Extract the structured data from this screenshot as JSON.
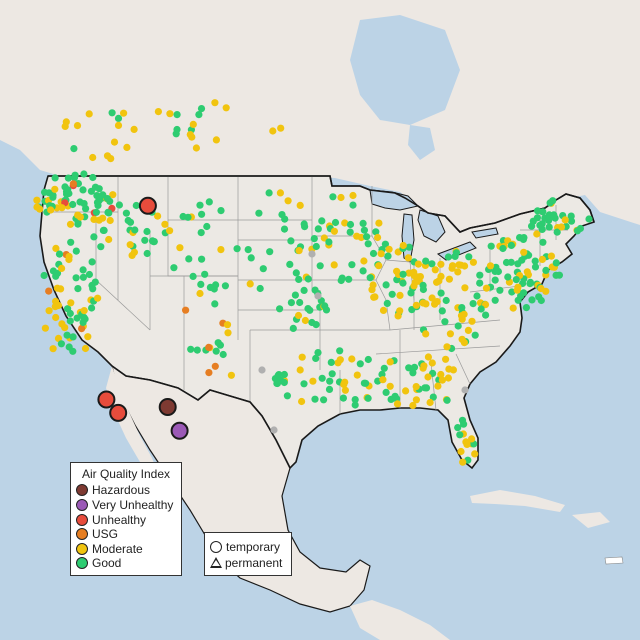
{
  "colors": {
    "water": "#bcd3e6",
    "land": "#ece9e4",
    "land_other": "#ede8e3",
    "boundary": "#1a1a1a",
    "state_line": "#9a9a9a",
    "Hazardous": "#7e3a32",
    "Very Unhealthy": "#9b59b6",
    "Unhealthy": "#e74c3c",
    "USG": "#e67e22",
    "Moderate": "#f1c40f",
    "Good": "#2ecc71",
    "missing": "#b0b0b0"
  },
  "legend": {
    "title": "Air Quality Index",
    "items": [
      {
        "label": "Hazardous",
        "color": "#7e3a32"
      },
      {
        "label": "Very Unhealthy",
        "color": "#9b59b6"
      },
      {
        "label": "Unhealthy",
        "color": "#e74c3c"
      },
      {
        "label": "USG",
        "color": "#e67e22"
      },
      {
        "label": "Moderate",
        "color": "#f1c40f"
      },
      {
        "label": "Good",
        "color": "#2ecc71"
      }
    ]
  },
  "shape_legend": {
    "temporary": "temporary",
    "permanent": "permanent"
  },
  "large_monitors": [
    {
      "category": "Unhealthy",
      "lat": 47.0,
      "lon": -114.1
    },
    {
      "category": "Unhealthy",
      "lat": 34.0,
      "lon": -118.3
    },
    {
      "category": "Unhealthy",
      "lat": 33.1,
      "lon": -117.1
    },
    {
      "category": "Hazardous",
      "lat": 33.5,
      "lon": -112.1
    },
    {
      "category": "Very Unhealthy",
      "lat": 31.9,
      "lon": -110.9
    }
  ]
}
